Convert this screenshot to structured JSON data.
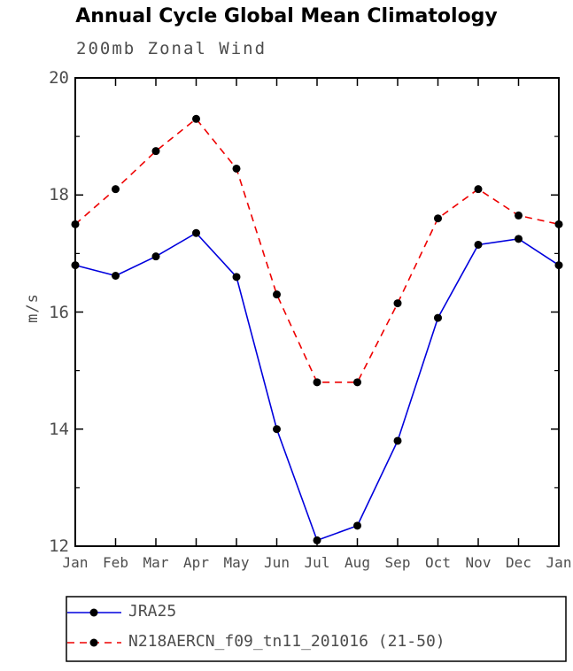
{
  "title": "Annual Cycle Global Mean Climatology",
  "chart_data": {
    "type": "line",
    "subtitle": "200mb Zonal Wind",
    "ylabel": "m/s",
    "xlabel": "",
    "categories": [
      "Jan",
      "Feb",
      "Mar",
      "Apr",
      "May",
      "Jun",
      "Jul",
      "Aug",
      "Sep",
      "Oct",
      "Nov",
      "Dec",
      "Jan"
    ],
    "ylim": [
      12,
      20
    ],
    "yticks": [
      12,
      14,
      16,
      18,
      20
    ],
    "yminor": [
      13,
      15,
      17,
      19
    ],
    "grid": false,
    "legend_position": "bottom",
    "marker": {
      "shape": "circle",
      "color": "#000000",
      "radius": 4.5
    },
    "series": [
      {
        "name": "JRA25",
        "color": "#0000dd",
        "dash": "solid",
        "values": [
          16.8,
          16.62,
          16.95,
          17.35,
          16.6,
          14.0,
          12.1,
          12.35,
          13.8,
          15.9,
          17.15,
          17.25,
          16.8
        ]
      },
      {
        "name": "N218AERCN_f09_tn11_201016 (21-50)",
        "color": "#ee0000",
        "dash": "dashed",
        "values": [
          17.5,
          18.1,
          18.75,
          19.3,
          18.45,
          16.3,
          14.8,
          14.8,
          16.15,
          17.6,
          18.1,
          17.65,
          17.5
        ]
      }
    ],
    "axis_color": "#000000",
    "text_color": "#4d4d4d"
  }
}
